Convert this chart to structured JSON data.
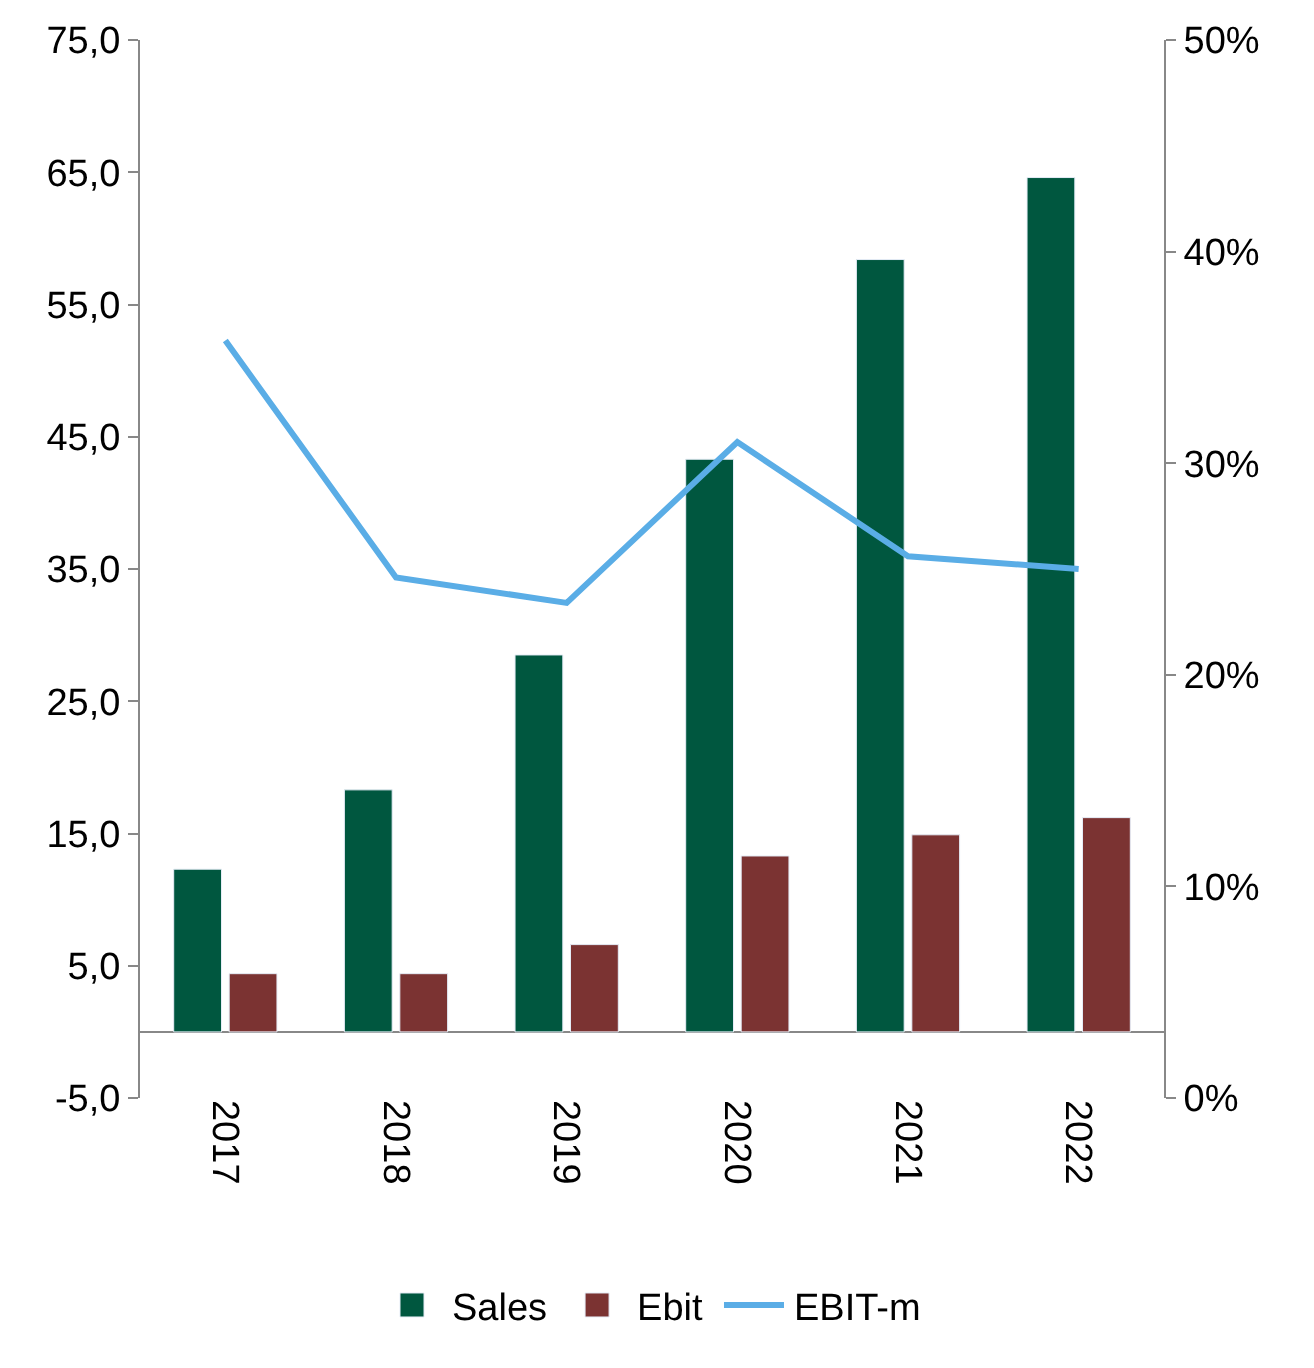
{
  "chart_data": {
    "type": "bar",
    "categories": [
      "2017",
      "2018",
      "2019",
      "2020",
      "2021",
      "2022"
    ],
    "series": [
      {
        "name": "Sales",
        "color": "#00573f",
        "values": [
          12.3,
          18.3,
          28.5,
          43.3,
          58.4,
          64.6
        ]
      },
      {
        "name": "Ebit",
        "color": "#7b3332",
        "values": [
          4.4,
          4.4,
          6.6,
          13.3,
          14.9,
          16.2
        ]
      },
      {
        "name": "EBIT-m",
        "type": "line",
        "axis": "y2",
        "color": "#5aade6",
        "values": [
          35.8,
          24.6,
          23.4,
          31.0,
          25.6,
          25.0
        ]
      }
    ],
    "ylim": [
      -5,
      75
    ],
    "yticks": [
      {
        "value": -5,
        "label": "-5,0"
      },
      {
        "value": 5,
        "label": "5,0"
      },
      {
        "value": 15,
        "label": "15,0"
      },
      {
        "value": 25,
        "label": "25,0"
      },
      {
        "value": 35,
        "label": "35,0"
      },
      {
        "value": 45,
        "label": "45,0"
      },
      {
        "value": 55,
        "label": "55,0"
      },
      {
        "value": 65,
        "label": "65,0"
      },
      {
        "value": 75,
        "label": "75,0"
      }
    ],
    "y2lim": [
      0,
      50
    ],
    "y2ticks": [
      {
        "value": 0,
        "label": "0%"
      },
      {
        "value": 10,
        "label": "10%"
      },
      {
        "value": 20,
        "label": "20%"
      },
      {
        "value": 30,
        "label": "30%"
      },
      {
        "value": 40,
        "label": "40%"
      },
      {
        "value": 50,
        "label": "50%"
      }
    ],
    "legend": "bottom",
    "marker": "none",
    "line_style": "solid"
  }
}
